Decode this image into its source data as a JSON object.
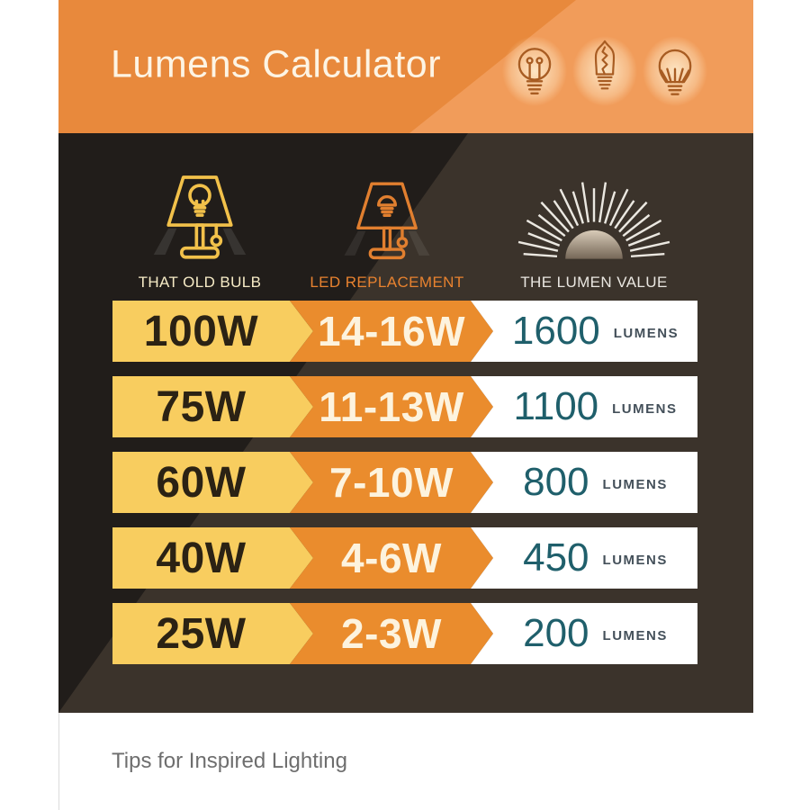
{
  "header": {
    "title": "Lumens Calculator",
    "bg_light": "#f19c5a",
    "bg_dark": "#e8893c",
    "title_color": "#fdf4e4",
    "icons": [
      {
        "name": "incandescent-bulb-icon"
      },
      {
        "name": "edison-bulb-icon"
      },
      {
        "name": "led-bulb-icon"
      }
    ]
  },
  "columns": [
    {
      "label": "THAT OLD BULB",
      "icon": "table-lamp-old-icon",
      "color": "#f6ebc6"
    },
    {
      "label": "LED REPLACEMENT",
      "icon": "table-lamp-led-icon",
      "color": "#e8822f"
    },
    {
      "label": "THE LUMEN VALUE",
      "icon": "sunburst-icon",
      "color": "#eae7e1"
    }
  ],
  "table": {
    "rows": [
      {
        "old": "100W",
        "led": "14-16W",
        "lumens": "1600",
        "unit": "LUMENS"
      },
      {
        "old": "75W",
        "led": "11-13W",
        "lumens": "1100",
        "unit": "LUMENS"
      },
      {
        "old": "60W",
        "led": "7-10W",
        "lumens": "800",
        "unit": "LUMENS"
      },
      {
        "old": "40W",
        "led": "4-6W",
        "lumens": "450",
        "unit": "LUMENS"
      },
      {
        "old": "25W",
        "led": "2-3W",
        "lumens": "200",
        "unit": "LUMENS"
      }
    ],
    "colors": {
      "old_bg": "#f8cd5f",
      "led_bg": "#ea8c2d",
      "value_bg": "#ffffff",
      "old_text": "#2b2214",
      "led_text": "#fdf3de",
      "value_text": "#1f5f6b",
      "unit_text": "#44505a",
      "body_dark": "#211d1a",
      "body_brown": "#3b332b"
    }
  },
  "footer": {
    "caption": "Tips for Inspired Lighting",
    "color": "#6e6e6e"
  },
  "chart_data": {
    "type": "table",
    "title": "Lumens Calculator",
    "columns": [
      "THAT OLD BULB",
      "LED REPLACEMENT",
      "THE LUMEN VALUE"
    ],
    "rows": [
      [
        "100W",
        "14-16W",
        "1600 LUMENS"
      ],
      [
        "75W",
        "11-13W",
        "1100 LUMENS"
      ],
      [
        "60W",
        "7-10W",
        "800 LUMENS"
      ],
      [
        "40W",
        "4-6W",
        "450 LUMENS"
      ],
      [
        "25W",
        "2-3W",
        "200 LUMENS"
      ]
    ]
  }
}
